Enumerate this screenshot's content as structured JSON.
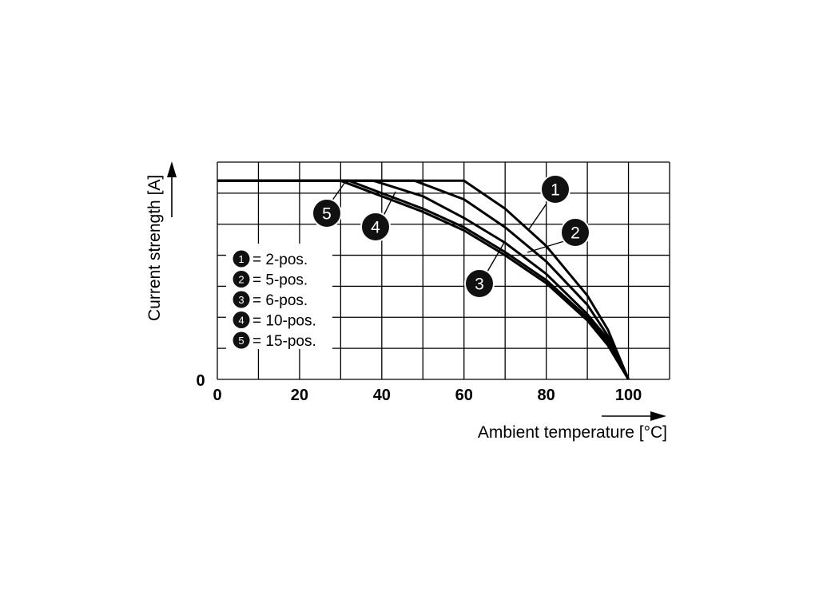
{
  "chart_data": {
    "type": "line",
    "xlabel": "Ambient temperature [°C]",
    "ylabel": "Current strength [A]",
    "xlim": [
      0,
      110
    ],
    "ylim": [
      0,
      7
    ],
    "x_ticks": [
      "0",
      "20",
      "40",
      "60",
      "80",
      "100"
    ],
    "y_ticks": [
      "0"
    ],
    "grid": true,
    "series": [
      {
        "name": "1",
        "legend_label": "= 2-pos.",
        "x": [
          0,
          60,
          70,
          80,
          90,
          95,
          100
        ],
        "y": [
          6.4,
          6.4,
          5.5,
          4.3,
          2.7,
          1.6,
          0
        ]
      },
      {
        "name": "2",
        "legend_label": "= 5-pos.",
        "x": [
          0,
          48,
          60,
          70,
          80,
          90,
          95,
          100
        ],
        "y": [
          6.4,
          6.4,
          5.8,
          4.9,
          3.8,
          2.4,
          1.4,
          0
        ]
      },
      {
        "name": "3",
        "legend_label": "= 6-pos.",
        "x": [
          0,
          38,
          50,
          60,
          70,
          80,
          90,
          95,
          100
        ],
        "y": [
          6.4,
          6.4,
          5.9,
          5.2,
          4.4,
          3.4,
          2.1,
          1.3,
          0
        ]
      },
      {
        "name": "4",
        "legend_label": "= 10-pos.",
        "x": [
          0,
          32,
          40,
          50,
          60,
          70,
          80,
          90,
          95,
          100
        ],
        "y": [
          6.4,
          6.4,
          6.0,
          5.5,
          4.9,
          4.1,
          3.2,
          2.0,
          1.2,
          0
        ]
      },
      {
        "name": "5",
        "legend_label": "= 15-pos.",
        "x": [
          0,
          30,
          40,
          50,
          60,
          70,
          80,
          90,
          95,
          100
        ],
        "y": [
          6.4,
          6.4,
          5.9,
          5.4,
          4.8,
          4.0,
          3.1,
          1.9,
          1.1,
          0
        ]
      }
    ],
    "legend_placement": "left",
    "annotations": [
      "1",
      "2",
      "3",
      "4",
      "5"
    ]
  }
}
